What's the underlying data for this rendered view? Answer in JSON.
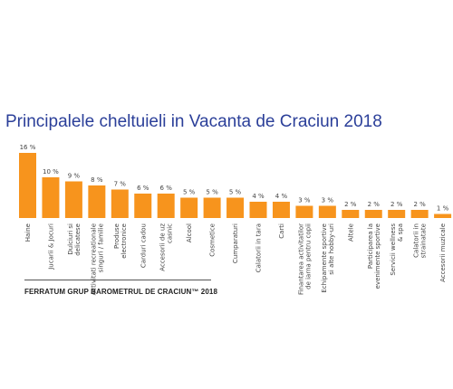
{
  "chart_data": {
    "type": "bar",
    "title": "Principalele cheltuieli in Vacanta de Craciun 2018",
    "categories": [
      [
        "Haine"
      ],
      [
        "Jucarii & Jocuri"
      ],
      [
        "Dulciuri si",
        "delicatese"
      ],
      [
        "Activitati recreationale",
        "singuri / familie"
      ],
      [
        "Produse",
        "electronice"
      ],
      [
        "Carduri cadou"
      ],
      [
        "Accesorii de uz",
        "casnic"
      ],
      [
        "Alcool"
      ],
      [
        "Cosmetice"
      ],
      [
        "Cumparaturi"
      ],
      [
        "Calatorii in tara"
      ],
      [
        "Carti"
      ],
      [
        "Finantarea activitatilor",
        "de iarna pentru copii"
      ],
      [
        "Echipamente sportive",
        "si alte hobby-uri"
      ],
      [
        "Altele"
      ],
      [
        "Participarea la",
        "evenimente sportive"
      ],
      [
        "Servicii wellness",
        "& spa"
      ],
      [
        "Calatorii in",
        "strainatate"
      ],
      [
        "Accesorii muzicale"
      ]
    ],
    "values": [
      16,
      10,
      9,
      8,
      7,
      6,
      6,
      5,
      5,
      5,
      4,
      4,
      3,
      3,
      2,
      2,
      2,
      2,
      1
    ],
    "value_labels": [
      "16 %",
      "10 %",
      "9 %",
      "8 %",
      "7 %",
      "6 %",
      "6 %",
      "5 %",
      "5 %",
      "5 %",
      "4 %",
      "4 %",
      "3 %",
      "3 %",
      "2 %",
      "2 %",
      "2 %",
      "2 %",
      "1 %"
    ],
    "value_unit": "%",
    "ylim": [
      0,
      16
    ],
    "grid": false,
    "legend": "none",
    "bar_color": "#f7941d"
  },
  "footer": {
    "source": "FERRATUM GRUP BAROMETRUL DE CRACIUN™ 2018"
  },
  "colors": {
    "title": "#2b3f99",
    "bar": "#f7941d"
  }
}
